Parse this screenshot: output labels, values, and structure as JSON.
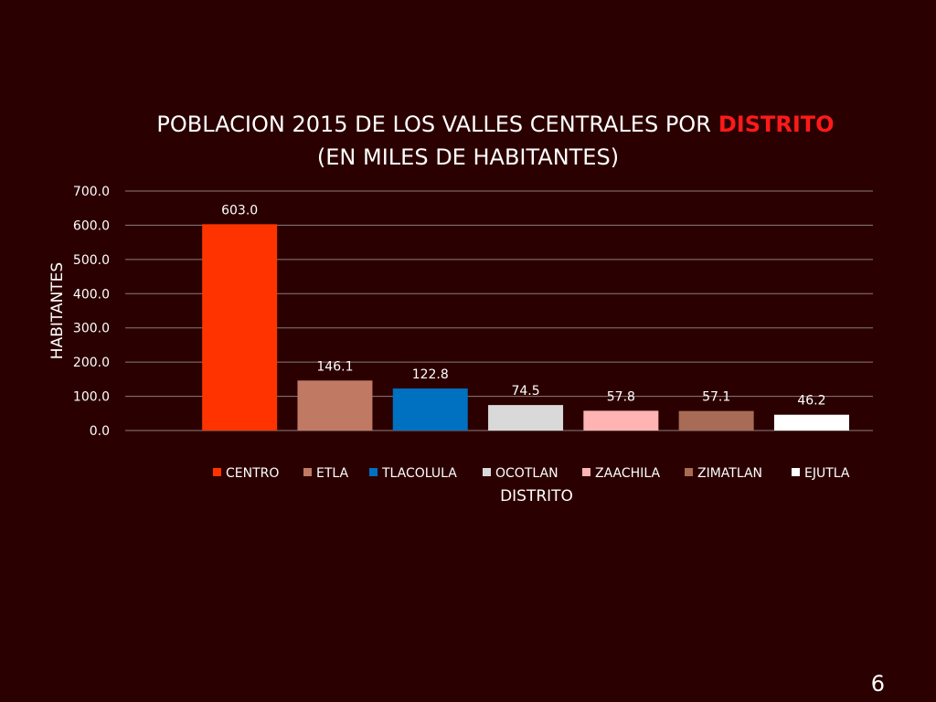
{
  "slide_number": "6",
  "chart_data": {
    "type": "bar",
    "title_line1": "POBLACION 2015 DE LOS VALLES CENTRALES POR",
    "title_highlight": "DISTRITO",
    "title_line2": "(EN MILES DE HABITANTES)",
    "xlabel": "DISTRITO",
    "ylabel": "HABITANTES",
    "ylim": [
      0,
      700
    ],
    "yticks": [
      "0.0",
      "100.0",
      "200.0",
      "300.0",
      "400.0",
      "500.0",
      "600.0",
      "700.0"
    ],
    "grid": true,
    "legend_position": "bottom",
    "categories": [
      "CENTRO",
      "ETLA",
      "TLACOLULA",
      "OCOTLAN",
      "ZAACHILA",
      "ZIMATLAN",
      "EJUTLA"
    ],
    "values": [
      603.0,
      146.1,
      122.8,
      74.5,
      57.8,
      57.1,
      46.2
    ],
    "value_labels": [
      "603.0",
      "146.1",
      "122.8",
      "74.5",
      "57.8",
      "57.1",
      "46.2"
    ],
    "colors": [
      "#ff3300",
      "#c07a64",
      "#0070c0",
      "#d9d9d9",
      "#ffb3b3",
      "#a86b55",
      "#ffffff"
    ],
    "highlight_color": "#ff1a1a"
  }
}
